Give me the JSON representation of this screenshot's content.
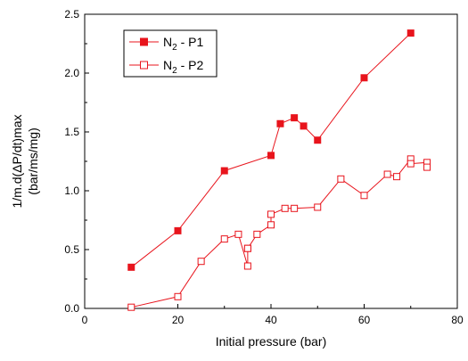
{
  "chart_data": {
    "type": "line",
    "xlabel": "Initial pressure (bar)",
    "ylabel": [
      "1/m.d(ΔP/dt)max",
      "(bar/ms/mg)"
    ],
    "xlim": [
      0,
      80
    ],
    "ylim": [
      0,
      2.5
    ],
    "xticks": [
      "0",
      "20",
      "40",
      "60",
      "80"
    ],
    "yticks": [
      "0.0",
      "0.5",
      "1.0",
      "1.5",
      "2.0",
      "2.5"
    ],
    "xtick_values": [
      0,
      20,
      40,
      60,
      80
    ],
    "ytick_values": [
      0,
      0.5,
      1.0,
      1.5,
      2.0,
      2.5
    ],
    "grid": false,
    "legend_position": "top-left",
    "color": "#e8141c",
    "series": [
      {
        "name_main": "N",
        "name_sub": "2",
        "name_rest": " - P1",
        "marker": "filled-square",
        "x": [
          10,
          20,
          30,
          40,
          42,
          45,
          47,
          50,
          60,
          70
        ],
        "y": [
          0.35,
          0.66,
          1.17,
          1.3,
          1.57,
          1.62,
          1.55,
          1.43,
          1.96,
          2.34
        ]
      },
      {
        "name_main": "N",
        "name_sub": "2",
        "name_rest": " - P2",
        "marker": "open-square",
        "x": [
          10,
          20,
          25,
          30,
          33,
          35,
          35,
          35,
          37,
          40,
          40,
          43,
          45,
          50,
          55,
          60,
          65,
          67,
          70,
          70,
          73.5,
          73.5
        ],
        "y": [
          0.01,
          0.1,
          0.4,
          0.59,
          0.63,
          0.36,
          0.51,
          0.51,
          0.63,
          0.71,
          0.8,
          0.85,
          0.85,
          0.86,
          1.1,
          0.96,
          1.14,
          1.12,
          1.27,
          1.23,
          1.24,
          1.2
        ]
      }
    ]
  }
}
